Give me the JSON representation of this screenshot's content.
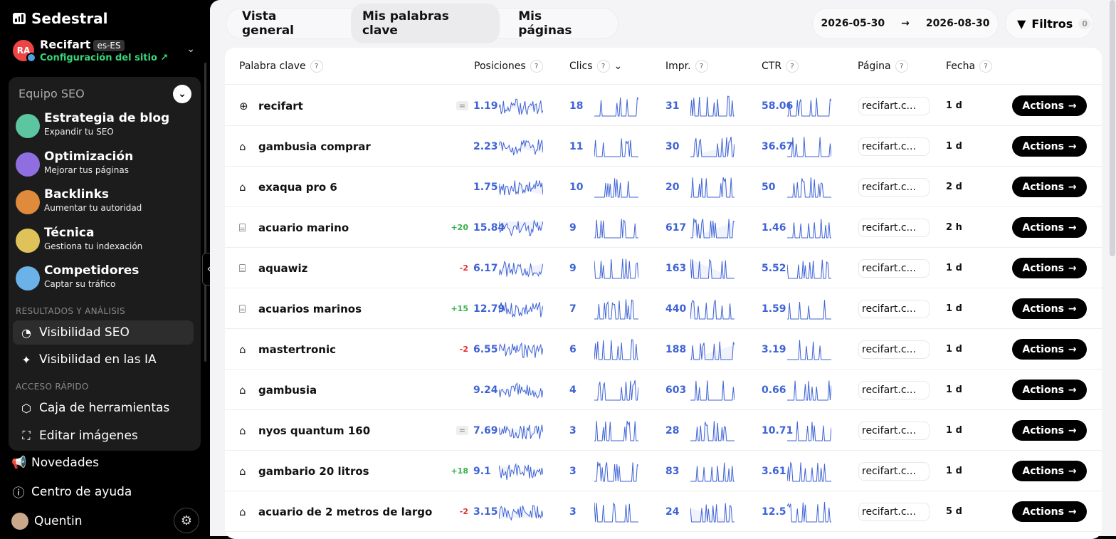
{
  "brand": {
    "name": "Sedestral"
  },
  "site": {
    "name": "Recifart",
    "lang": "es-ES",
    "config_label": "Configuración del sitio ↗",
    "avatar": "RA"
  },
  "team": {
    "title": "Equipo SEO",
    "agents": [
      {
        "title": "Estrategia de blog",
        "subtitle": "Expandir tu SEO",
        "color": "#5cc6a0"
      },
      {
        "title": "Optimización",
        "subtitle": "Mejorar tus páginas",
        "color": "#8f6ee0"
      },
      {
        "title": "Backlinks",
        "subtitle": "Aumentar tu autoridad",
        "color": "#e08a3c"
      },
      {
        "title": "Técnica",
        "subtitle": "Gestiona tu indexación",
        "color": "#e0c25a"
      },
      {
        "title": "Competidores",
        "subtitle": "Captar su tráfico",
        "color": "#6ab2e8"
      }
    ],
    "section_results": "RESULTADOS Y ANÁLISIS",
    "nav_results": [
      {
        "label": "Visibilidad SEO",
        "icon": "pie-chart-icon"
      },
      {
        "label": "Visibilidad en las IA",
        "icon": "sparkle-icon"
      }
    ],
    "section_quick": "ACCESO RÁPIDO",
    "nav_quick": [
      {
        "label": "Caja de herramientas",
        "icon": "box-icon"
      },
      {
        "label": "Editar imágenes",
        "icon": "image-edit-icon"
      }
    ]
  },
  "bottom_nav": [
    {
      "label": "Novedades",
      "icon": "megaphone-icon"
    },
    {
      "label": "Centro de ayuda",
      "icon": "help-icon"
    }
  ],
  "user": {
    "name": "Quentin"
  },
  "tabs": [
    "Vista general",
    "Mis palabras clave",
    "Mis páginas"
  ],
  "date_range": {
    "from": "2026-05-30",
    "to": "2026-08-30"
  },
  "filters": {
    "label": "Filtros",
    "count": "0"
  },
  "table": {
    "headers": {
      "keyword": "Palabra clave",
      "positions": "Posiciones",
      "clicks": "Clics",
      "impr": "Impr.",
      "ctr": "CTR",
      "page": "Página",
      "date": "Fecha"
    },
    "action_label": "Actions",
    "rows": [
      {
        "icon": "globe-icon",
        "keyword": "recifart",
        "delta": "=",
        "pos": "1.19",
        "clicks": "18",
        "impr": "31",
        "ctr": "58.06",
        "page": "recifart.c...",
        "date": "1 d"
      },
      {
        "icon": "bag-icon",
        "keyword": "gambusia comprar",
        "delta": "",
        "pos": "2.23",
        "clicks": "11",
        "impr": "30",
        "ctr": "36.67",
        "page": "recifart.c...",
        "date": "1 d"
      },
      {
        "icon": "bag-icon",
        "keyword": "exaqua pro 6",
        "delta": "",
        "pos": "1.75",
        "clicks": "10",
        "impr": "20",
        "ctr": "50",
        "page": "recifart.c...",
        "date": "2 d"
      },
      {
        "icon": "store-icon",
        "keyword": "acuario marino",
        "delta": "+20",
        "pos": "15.84",
        "clicks": "9",
        "impr": "617",
        "ctr": "1.46",
        "page": "recifart.c...",
        "date": "2 h"
      },
      {
        "icon": "store-icon",
        "keyword": "aquawiz",
        "delta": "-2",
        "pos": "6.17",
        "clicks": "9",
        "impr": "163",
        "ctr": "5.52",
        "page": "recifart.c...",
        "date": "1 d"
      },
      {
        "icon": "store-icon",
        "keyword": "acuarios marinos",
        "delta": "+15",
        "pos": "12.79",
        "clicks": "7",
        "impr": "440",
        "ctr": "1.59",
        "page": "recifart.c...",
        "date": "1 d"
      },
      {
        "icon": "bag-icon",
        "keyword": "mastertronic",
        "delta": "-2",
        "pos": "6.55",
        "clicks": "6",
        "impr": "188",
        "ctr": "3.19",
        "page": "recifart.c...",
        "date": "1 d"
      },
      {
        "icon": "bag-icon",
        "keyword": "gambusia",
        "delta": "",
        "pos": "9.24",
        "clicks": "4",
        "impr": "603",
        "ctr": "0.66",
        "page": "recifart.c...",
        "date": "1 d"
      },
      {
        "icon": "bag-icon",
        "keyword": "nyos quantum 160",
        "delta": "=",
        "pos": "7.69",
        "clicks": "3",
        "impr": "28",
        "ctr": "10.71",
        "page": "recifart.c...",
        "date": "1 d"
      },
      {
        "icon": "bag-icon",
        "keyword": "gambario 20 litros",
        "delta": "+18",
        "pos": "9.1",
        "clicks": "3",
        "impr": "83",
        "ctr": "3.61",
        "page": "recifart.c...",
        "date": "1 d"
      },
      {
        "icon": "bag-icon",
        "keyword": "acuario de 2 metros de largo",
        "delta": "-2",
        "pos": "3.15",
        "clicks": "3",
        "impr": "24",
        "ctr": "12.5",
        "page": "recifart.c...",
        "date": "5 d"
      }
    ]
  },
  "colors": {
    "accent": "#3f63d6",
    "positive": "#37b24d",
    "negative": "#e03131",
    "config": "#37d67a"
  }
}
